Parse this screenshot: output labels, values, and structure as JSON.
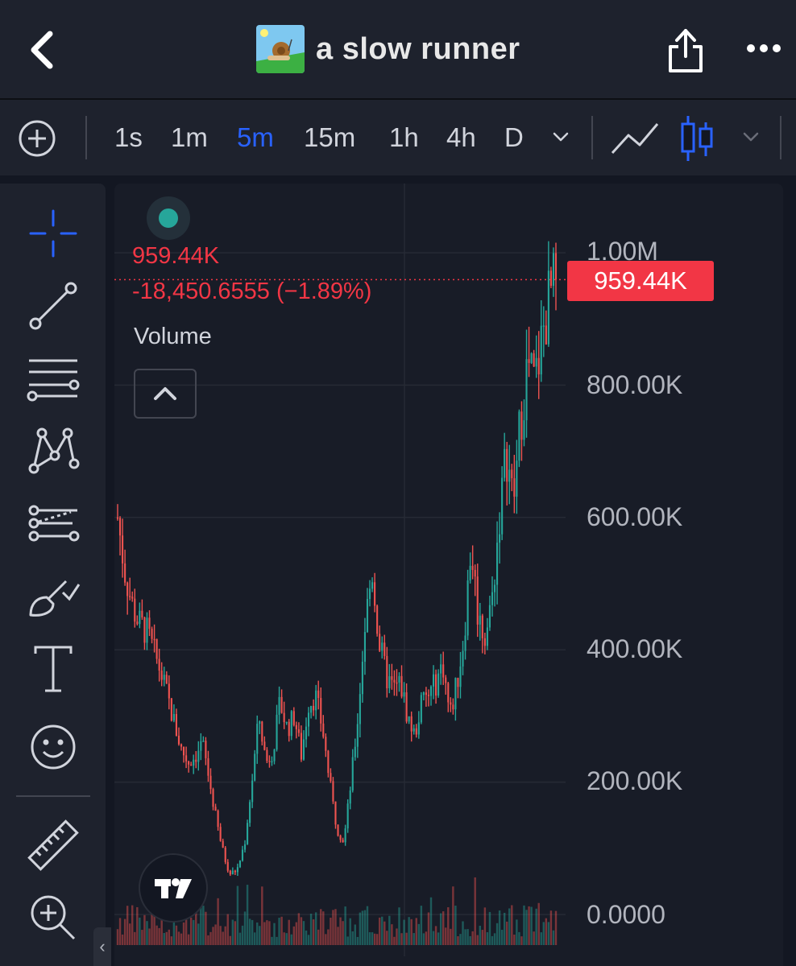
{
  "app": {
    "title": "a slow runner",
    "icons": {
      "back": "chevron-left-icon",
      "share": "share-icon",
      "more": "more-horizontal-icon",
      "token": "snail-token-icon"
    }
  },
  "toolbar": {
    "timeframes": [
      "1s",
      "1m",
      "5m",
      "15m",
      "1h",
      "4h",
      "D"
    ],
    "active_timeframe": "5m",
    "chart_types": [
      "line-chart-icon",
      "candlestick-icon"
    ],
    "accent": "#2962ff"
  },
  "sidebar": {
    "tools": [
      "crosshair-icon",
      "trend-line-icon",
      "fib-retracement-icon",
      "xabcd-pattern-icon",
      "forecast-icon",
      "brush-icon",
      "text-icon",
      "emoji-icon",
      "ruler-icon",
      "zoom-in-icon"
    ]
  },
  "legend": {
    "price": "959.44K",
    "change": "-18,450.6555 (−1.89%)",
    "volume_label": "Volume"
  },
  "price_axis": {
    "labels": [
      "1.00M",
      "800.00K",
      "600.00K",
      "400.00K",
      "200.00K",
      "0.0000"
    ],
    "last_price_tag": "959.44K"
  },
  "colors": {
    "up": "#26a69a",
    "down": "#ef5350",
    "last_price": "#f23645",
    "background": "#181c27"
  },
  "chart_data": {
    "type": "candlestick",
    "x": [
      0,
      10,
      20,
      30,
      40,
      50,
      60,
      70,
      80,
      90,
      100,
      110,
      120,
      130,
      140,
      150,
      160,
      170,
      180,
      190,
      200,
      210,
      220,
      230,
      240,
      250,
      260,
      270,
      280,
      290,
      300,
      310,
      320,
      330,
      340,
      350,
      360,
      370,
      380,
      390,
      400,
      410,
      420,
      430,
      440,
      450,
      460,
      470,
      480,
      490,
      500,
      510,
      520,
      530,
      540
    ],
    "y": [
      600000,
      520000,
      470000,
      440000,
      430000,
      400000,
      370000,
      330000,
      290000,
      250000,
      230000,
      240000,
      260000,
      200000,
      140000,
      90000,
      60000,
      70000,
      110000,
      200000,
      300000,
      230000,
      250000,
      320000,
      280000,
      300000,
      240000,
      320000,
      330000,
      280000,
      200000,
      130000,
      110000,
      200000,
      300000,
      440000,
      520000,
      410000,
      360000,
      340000,
      350000,
      300000,
      270000,
      320000,
      330000,
      350000,
      380000,
      300000,
      350000,
      420000,
      560000,
      450000,
      420000,
      480000,
      600000
    ],
    "x_tail": [
      550,
      560,
      570,
      580,
      590,
      600,
      610,
      620
    ],
    "y_tail": [
      700000,
      620000,
      750000,
      830000,
      800000,
      870000,
      930000,
      959440
    ],
    "ylim": [
      0,
      1000000
    ],
    "last": 959440,
    "change": -18450.6555,
    "change_pct": -1.89
  }
}
